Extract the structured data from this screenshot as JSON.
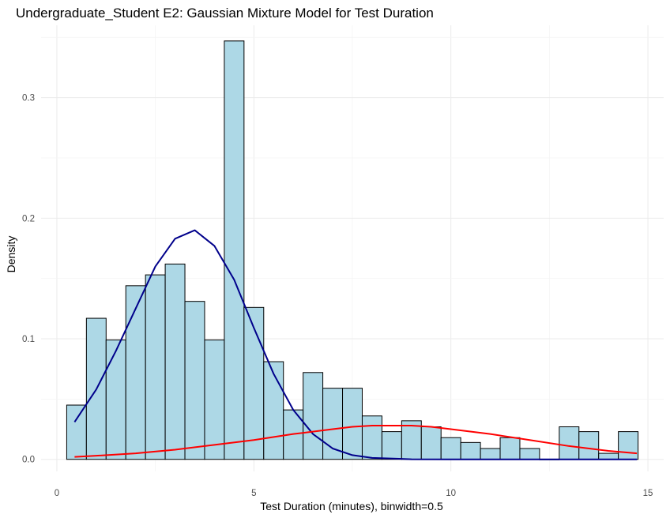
{
  "chart_data": {
    "type": "bar",
    "title": "Undergraduate_Student E2: Gaussian Mixture Model for Test Duration",
    "xlabel": "Test Duration (minutes), binwidth=0.5",
    "ylabel": "Density",
    "xlim": [
      -0.4,
      15.4
    ],
    "ylim": [
      -0.01,
      0.36
    ],
    "x_ticks": [
      0,
      5,
      10,
      15
    ],
    "x_tick_labels": [
      "0",
      "5",
      "10",
      "15"
    ],
    "y_ticks": [
      0.0,
      0.1,
      0.2,
      0.3
    ],
    "y_tick_labels": [
      "0.0",
      "0.1",
      "0.2",
      "0.3"
    ],
    "grid": true,
    "legend": "none",
    "binwidth": 0.5,
    "bin_starts": [
      0.25,
      0.75,
      1.25,
      1.75,
      2.25,
      2.75,
      3.25,
      3.75,
      4.25,
      4.75,
      5.25,
      5.75,
      6.25,
      6.75,
      7.25,
      7.75,
      8.25,
      8.75,
      9.25,
      9.75,
      10.25,
      10.75,
      11.25,
      11.75,
      12.25,
      12.75,
      13.25,
      13.75,
      14.25
    ],
    "values": [
      0.045,
      0.117,
      0.099,
      0.144,
      0.153,
      0.162,
      0.131,
      0.099,
      0.347,
      0.126,
      0.081,
      0.041,
      0.072,
      0.059,
      0.059,
      0.036,
      0.023,
      0.032,
      0.027,
      0.018,
      0.014,
      0.009,
      0.018,
      0.009,
      0.0,
      0.027,
      0.023,
      0.005,
      0.023
    ],
    "bar_fill": "#add8e6",
    "bar_edge": "#000000",
    "series": [
      {
        "type": "line",
        "color": "#00008b",
        "x": [
          0.45,
          1.0,
          1.5,
          2.0,
          2.5,
          3.0,
          3.5,
          4.0,
          4.5,
          5.0,
          5.5,
          6.0,
          6.5,
          7.0,
          7.5,
          8.0,
          9.0,
          10.0,
          11.0,
          12.0,
          13.0,
          14.0,
          14.72
        ],
        "y": [
          0.031,
          0.058,
          0.09,
          0.125,
          0.16,
          0.183,
          0.19,
          0.177,
          0.149,
          0.109,
          0.071,
          0.041,
          0.021,
          0.009,
          0.0035,
          0.0012,
          0.0001,
          0.0,
          0.0,
          0.0,
          0.0,
          0.0,
          0.0
        ]
      },
      {
        "type": "line",
        "color": "#ff0000",
        "x": [
          0.45,
          1.0,
          2.0,
          3.0,
          4.0,
          5.0,
          6.0,
          7.0,
          7.5,
          8.0,
          8.5,
          9.0,
          9.5,
          10.0,
          11.0,
          12.0,
          13.0,
          14.0,
          14.72
        ],
        "y": [
          0.002,
          0.003,
          0.005,
          0.008,
          0.012,
          0.016,
          0.021,
          0.025,
          0.027,
          0.028,
          0.028,
          0.028,
          0.027,
          0.025,
          0.021,
          0.016,
          0.011,
          0.007,
          0.005
        ]
      }
    ]
  }
}
